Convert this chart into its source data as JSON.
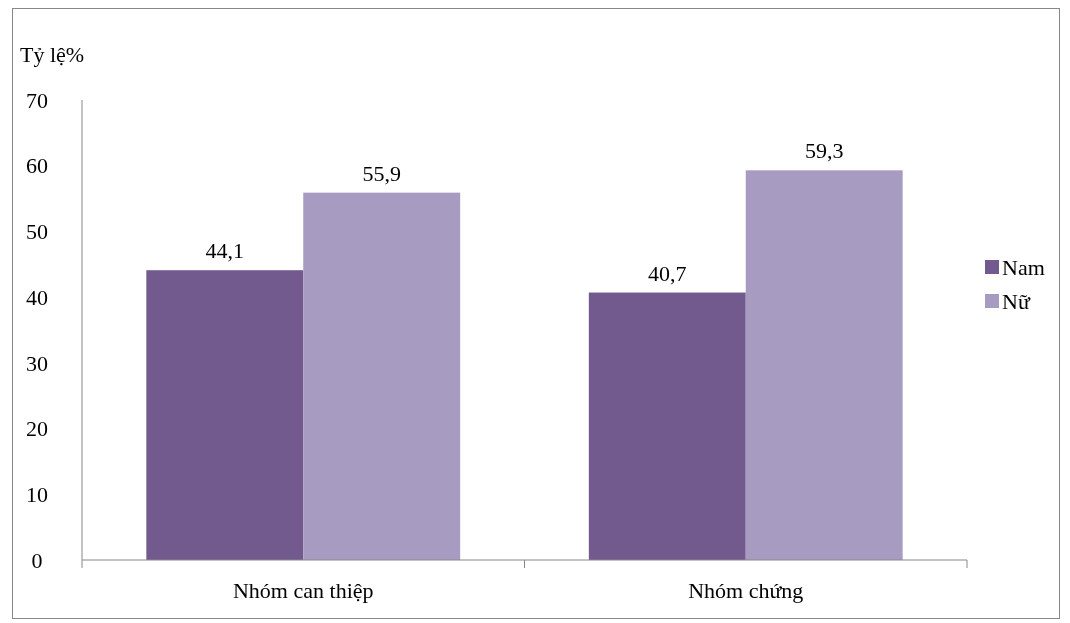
{
  "chart_data": {
    "type": "bar",
    "ylabel": "Tỷ lệ%",
    "categories": [
      "Nhóm can thiệp",
      "Nhóm chứng"
    ],
    "series": [
      {
        "name": "Nam",
        "color": "#725a8f",
        "values": [
          44.1,
          40.7
        ]
      },
      {
        "name": "Nữ",
        "color": "#a89bc1",
        "values": [
          55.9,
          59.3
        ]
      }
    ],
    "value_labels": [
      [
        "44,1",
        "40,7"
      ],
      [
        "55,9",
        "59,3"
      ]
    ],
    "ylim": [
      0,
      70
    ],
    "yticks": [
      0,
      10,
      20,
      30,
      40,
      50,
      60,
      70
    ],
    "grid": false,
    "legend": "right"
  }
}
